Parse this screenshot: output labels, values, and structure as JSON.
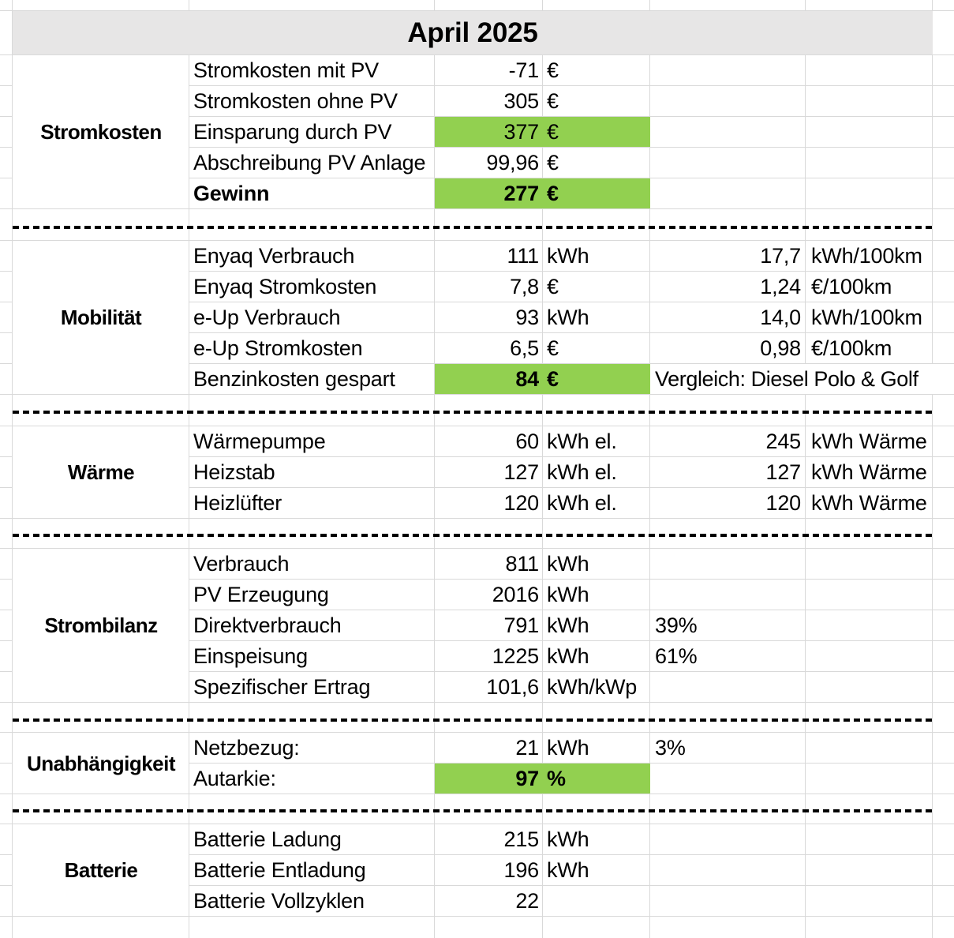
{
  "title": "April 2025",
  "colors": {
    "highlight_green": "#92d050",
    "title_background": "#e7e6e6",
    "gridline": "#d9d9d9"
  },
  "sections": [
    {
      "name": "Stromkosten",
      "rows": [
        {
          "label": "Stromkosten mit PV",
          "value": "-71",
          "unit": "€"
        },
        {
          "label": "Stromkosten ohne PV",
          "value": "305",
          "unit": "€"
        },
        {
          "label": "Einsparung durch PV",
          "value": "377",
          "unit": "€",
          "highlight": true
        },
        {
          "label": "Abschreibung PV Anlage",
          "value": "99,96",
          "unit": "€"
        },
        {
          "label": "Gewinn",
          "value": "277",
          "unit": "€",
          "highlight": true,
          "bold": true,
          "label_bold": true
        }
      ]
    },
    {
      "name": "Mobilität",
      "rows": [
        {
          "label": "Enyaq Verbrauch",
          "value": "111",
          "unit": "kWh",
          "rvalue": "17,7",
          "runit": "kWh/100km"
        },
        {
          "label": "Enyaq Stromkosten",
          "value": "7,8",
          "unit": "€",
          "rvalue": "1,24",
          "runit": "€/100km"
        },
        {
          "label": "e-Up Verbrauch",
          "value": "93",
          "unit": "kWh",
          "rvalue": "14,0",
          "runit": "kWh/100km"
        },
        {
          "label": "e-Up Stromkosten",
          "value": "6,5",
          "unit": "€",
          "rvalue": "0,98",
          "runit": "€/100km"
        },
        {
          "label": "Benzinkosten gespart",
          "value": "84",
          "unit": "€",
          "highlight": true,
          "bold": true,
          "note": "Vergleich: Diesel Polo & Golf"
        }
      ]
    },
    {
      "name": "Wärme",
      "rows": [
        {
          "label": "Wärmepumpe",
          "value": "60",
          "unit": "kWh el.",
          "rvalue": "245",
          "runit": "kWh Wärme"
        },
        {
          "label": "Heizstab",
          "value": "127",
          "unit": "kWh el.",
          "rvalue": "127",
          "runit": "kWh Wärme"
        },
        {
          "label": "Heizlüfter",
          "value": "120",
          "unit": "kWh el.",
          "rvalue": "120",
          "runit": "kWh Wärme"
        }
      ]
    },
    {
      "name": "Strombilanz",
      "rows": [
        {
          "label": "Verbrauch",
          "value": "811",
          "unit": "kWh"
        },
        {
          "label": "PV Erzeugung",
          "value": "2016",
          "unit": "kWh"
        },
        {
          "label": "Direktverbrauch",
          "value": "791",
          "unit": "kWh",
          "pct": "39%"
        },
        {
          "label": "Einspeisung",
          "value": "1225",
          "unit": "kWh",
          "pct": "61%"
        },
        {
          "label": "Spezifischer Ertrag",
          "value": "101,6",
          "unit": "kWh/kWp"
        }
      ]
    },
    {
      "name": "Unabhängigkeit",
      "rows": [
        {
          "label": "Netzbezug:",
          "value": "21",
          "unit": "kWh",
          "pct": "3%"
        },
        {
          "label": "Autarkie:",
          "value": "97",
          "unit": "%",
          "highlight": true,
          "bold": true
        }
      ]
    },
    {
      "name": "Batterie",
      "rows": [
        {
          "label": "Batterie Ladung",
          "value": "215",
          "unit": "kWh"
        },
        {
          "label": "Batterie Entladung",
          "value": "196",
          "unit": "kWh"
        },
        {
          "label": "Batterie Vollzyklen",
          "value": "22",
          "unit": ""
        }
      ]
    }
  ]
}
